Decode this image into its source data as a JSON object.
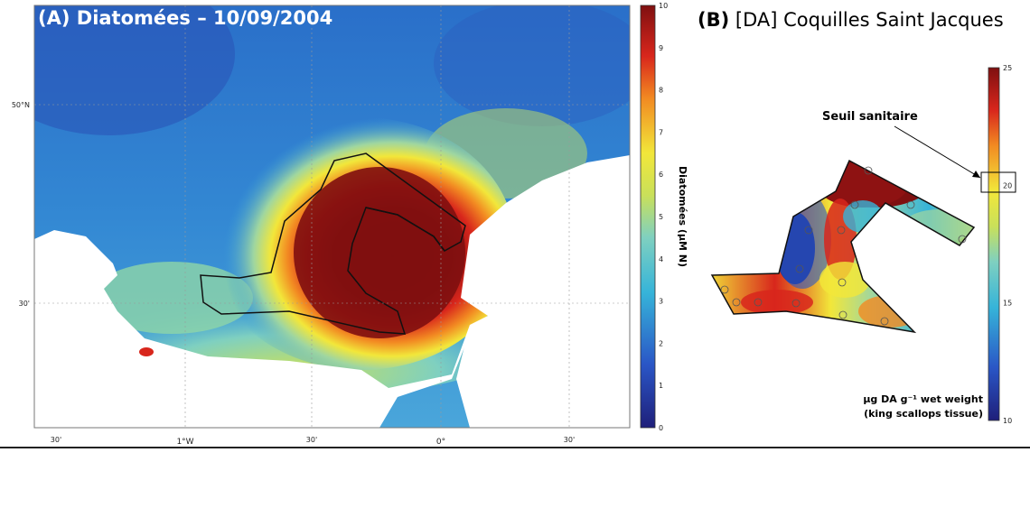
{
  "panel_a": {
    "title": "(A) Diatomées – 10/09/2004",
    "colorbar_label": "Diatomées (μM N)",
    "colorbar_ticks": [
      "0",
      "1",
      "2",
      "3",
      "4",
      "5",
      "6",
      "7",
      "8",
      "9",
      "10"
    ],
    "lat_labels": [
      "50°N",
      "30'"
    ],
    "lon_labels": [
      "30'",
      "1°W",
      "30'",
      "0°",
      "30'"
    ]
  },
  "panel_b": {
    "title_bold": "(B)",
    "title_rest": " [DA] Coquilles Saint Jacques",
    "colorbar_ticks": [
      "10",
      "15",
      "20",
      "25"
    ],
    "annotation": "Seuil sanitaire",
    "unit_line1": "μg DA g⁻¹ wet weight",
    "unit_line2": "(king scallops tissue)"
  },
  "colors": {
    "low": "#2b3a9c",
    "mid": "#36b4d9",
    "yellow": "#f2e73a",
    "red": "#d8261c",
    "darkred": "#7f1010"
  }
}
